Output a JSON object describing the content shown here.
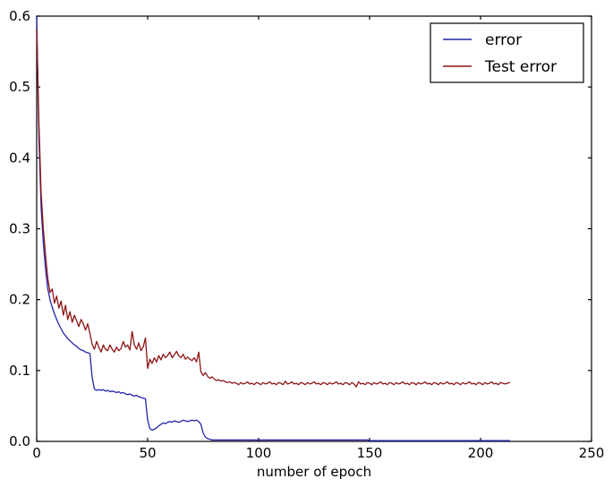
{
  "figure": {
    "background": "#ffffff"
  },
  "chart_data": {
    "type": "line",
    "title": "",
    "xlabel": "number of epoch",
    "ylabel": "",
    "xlim": [
      0,
      250
    ],
    "ylim": [
      0.0,
      0.6
    ],
    "x_ticks": [
      "0",
      "50",
      "100",
      "150",
      "200",
      "250"
    ],
    "y_ticks": [
      "0.0",
      "0.1",
      "0.2",
      "0.3",
      "0.4",
      "0.5",
      "0.6"
    ],
    "grid": false,
    "axes_color": "#000000",
    "legend": {
      "position": "upper-right",
      "border_color": "#000000",
      "background": "#ffffff",
      "entries": [
        "error",
        "Test error"
      ]
    },
    "series": [
      {
        "name": "error",
        "color": "#2222aa",
        "x_start": 0,
        "x_step": 1,
        "values": [
          0.6,
          0.43,
          0.33,
          0.28,
          0.243,
          0.215,
          0.2,
          0.189,
          0.18,
          0.172,
          0.165,
          0.159,
          0.153,
          0.149,
          0.145,
          0.142,
          0.139,
          0.136,
          0.134,
          0.131,
          0.129,
          0.128,
          0.126,
          0.125,
          0.124,
          0.09,
          0.074,
          0.072,
          0.073,
          0.072,
          0.073,
          0.071,
          0.072,
          0.07,
          0.071,
          0.07,
          0.069,
          0.07,
          0.068,
          0.069,
          0.067,
          0.066,
          0.067,
          0.065,
          0.064,
          0.065,
          0.063,
          0.062,
          0.061,
          0.06,
          0.03,
          0.018,
          0.016,
          0.017,
          0.019,
          0.022,
          0.024,
          0.026,
          0.025,
          0.027,
          0.028,
          0.027,
          0.029,
          0.028,
          0.027,
          0.028,
          0.03,
          0.029,
          0.028,
          0.029,
          0.03,
          0.029,
          0.03,
          0.028,
          0.024,
          0.012,
          0.006,
          0.004,
          0.003,
          0.002,
          0.002,
          0.002,
          0.002,
          0.002,
          0.002,
          0.002,
          0.002,
          0.002,
          0.002,
          0.002,
          0.002,
          0.002,
          0.002,
          0.002,
          0.002,
          0.002,
          0.002,
          0.002,
          0.002,
          0.002,
          0.002,
          0.002,
          0.002,
          0.002,
          0.002,
          0.002,
          0.002,
          0.002,
          0.002,
          0.002,
          0.002,
          0.002,
          0.002,
          0.002,
          0.002,
          0.002,
          0.002,
          0.002,
          0.002,
          0.002,
          0.002,
          0.002,
          0.002,
          0.002,
          0.002,
          0.002,
          0.002,
          0.002,
          0.002,
          0.002,
          0.002,
          0.002,
          0.002,
          0.002,
          0.002,
          0.002,
          0.002,
          0.002,
          0.002,
          0.002,
          0.002,
          0.002,
          0.002,
          0.002,
          0.002,
          0.002,
          0.002,
          0.002,
          0.002,
          0.002,
          0.001,
          0.001,
          0.001,
          0.001,
          0.001,
          0.001,
          0.001,
          0.001,
          0.001,
          0.001,
          0.001,
          0.001,
          0.001,
          0.001,
          0.001,
          0.001,
          0.001,
          0.001,
          0.001,
          0.001,
          0.001,
          0.001,
          0.001,
          0.001,
          0.001,
          0.001,
          0.001,
          0.001,
          0.001,
          0.001,
          0.001,
          0.001,
          0.001,
          0.001,
          0.001,
          0.001,
          0.001,
          0.001,
          0.001,
          0.001,
          0.001,
          0.001,
          0.001,
          0.001,
          0.001,
          0.001,
          0.001,
          0.001,
          0.001,
          0.001,
          0.001,
          0.001,
          0.001,
          0.001,
          0.001,
          0.001,
          0.001,
          0.001,
          0.001,
          0.001,
          0.001,
          0.001,
          0.001,
          0.001
        ]
      },
      {
        "name": "Test error",
        "color": "#8e1414",
        "x_start": 0,
        "x_step": 1,
        "values": [
          0.58,
          0.45,
          0.35,
          0.3,
          0.262,
          0.23,
          0.21,
          0.215,
          0.195,
          0.205,
          0.188,
          0.198,
          0.178,
          0.192,
          0.172,
          0.183,
          0.168,
          0.178,
          0.17,
          0.162,
          0.172,
          0.166,
          0.157,
          0.166,
          0.152,
          0.137,
          0.13,
          0.141,
          0.133,
          0.126,
          0.136,
          0.13,
          0.128,
          0.136,
          0.13,
          0.126,
          0.133,
          0.128,
          0.131,
          0.141,
          0.133,
          0.136,
          0.129,
          0.155,
          0.136,
          0.13,
          0.139,
          0.128,
          0.133,
          0.146,
          0.103,
          0.116,
          0.11,
          0.118,
          0.112,
          0.121,
          0.115,
          0.123,
          0.118,
          0.121,
          0.126,
          0.118,
          0.122,
          0.127,
          0.121,
          0.118,
          0.123,
          0.116,
          0.119,
          0.116,
          0.114,
          0.118,
          0.112,
          0.126,
          0.098,
          0.093,
          0.097,
          0.092,
          0.089,
          0.091,
          0.088,
          0.086,
          0.087,
          0.085,
          0.086,
          0.084,
          0.083,
          0.084,
          0.082,
          0.083,
          0.082,
          0.08,
          0.083,
          0.081,
          0.082,
          0.084,
          0.081,
          0.082,
          0.08,
          0.083,
          0.082,
          0.08,
          0.083,
          0.081,
          0.082,
          0.084,
          0.081,
          0.082,
          0.08,
          0.083,
          0.082,
          0.08,
          0.085,
          0.081,
          0.082,
          0.084,
          0.081,
          0.082,
          0.08,
          0.083,
          0.082,
          0.08,
          0.083,
          0.081,
          0.082,
          0.084,
          0.081,
          0.082,
          0.08,
          0.083,
          0.082,
          0.08,
          0.083,
          0.081,
          0.082,
          0.084,
          0.081,
          0.082,
          0.08,
          0.083,
          0.082,
          0.08,
          0.083,
          0.081,
          0.077,
          0.084,
          0.081,
          0.082,
          0.08,
          0.083,
          0.082,
          0.08,
          0.083,
          0.081,
          0.082,
          0.084,
          0.081,
          0.082,
          0.08,
          0.083,
          0.082,
          0.08,
          0.083,
          0.081,
          0.082,
          0.084,
          0.081,
          0.082,
          0.08,
          0.083,
          0.082,
          0.08,
          0.083,
          0.081,
          0.082,
          0.084,
          0.081,
          0.082,
          0.08,
          0.083,
          0.082,
          0.08,
          0.083,
          0.081,
          0.082,
          0.084,
          0.081,
          0.082,
          0.08,
          0.083,
          0.082,
          0.08,
          0.083,
          0.081,
          0.082,
          0.084,
          0.081,
          0.082,
          0.08,
          0.083,
          0.082,
          0.08,
          0.083,
          0.081,
          0.082,
          0.084,
          0.081,
          0.082,
          0.08,
          0.083,
          0.082,
          0.081,
          0.082,
          0.083
        ]
      }
    ]
  }
}
